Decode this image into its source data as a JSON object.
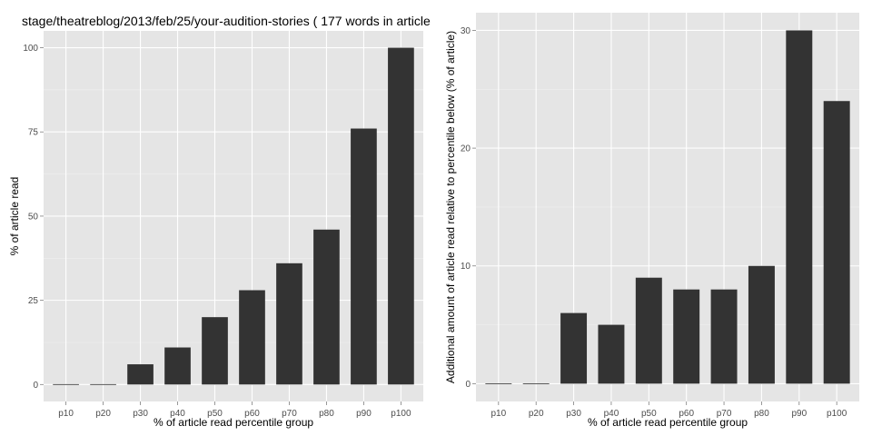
{
  "page_title": "stage/theatreblog/2013/feb/25/your-audition-stories ( 177 words in article",
  "chart_data": [
    {
      "type": "bar",
      "title": "stage/theatreblog/2013/feb/25/your-audition-stories ( 177 words in article",
      "xlabel": "% of article read percentile group",
      "ylabel": "% of article read",
      "categories": [
        "p10",
        "p20",
        "p30",
        "p40",
        "p50",
        "p60",
        "p70",
        "p80",
        "p90",
        "p100"
      ],
      "values": [
        0,
        0,
        6,
        11,
        20,
        28,
        36,
        46,
        76,
        100
      ],
      "ylim": [
        0,
        105
      ],
      "yticks": [
        0,
        25,
        50,
        75,
        100
      ],
      "grid": true,
      "colors": {
        "panel": "#e5e5e5",
        "grid": "#ffffff",
        "bar": "#333333"
      }
    },
    {
      "type": "bar",
      "title": "",
      "xlabel": "% of article read percentile group",
      "ylabel": "Additional amount of article read relative to percentile below (% of article)",
      "categories": [
        "p10",
        "p20",
        "p30",
        "p40",
        "p50",
        "p60",
        "p70",
        "p80",
        "p90",
        "p100"
      ],
      "values": [
        0,
        0,
        6,
        5,
        9,
        8,
        8,
        10,
        30,
        24
      ],
      "ylim": [
        0,
        31.5
      ],
      "yticks": [
        0,
        10,
        20,
        30
      ],
      "grid": true,
      "colors": {
        "panel": "#e5e5e5",
        "grid": "#ffffff",
        "bar": "#333333"
      }
    }
  ]
}
